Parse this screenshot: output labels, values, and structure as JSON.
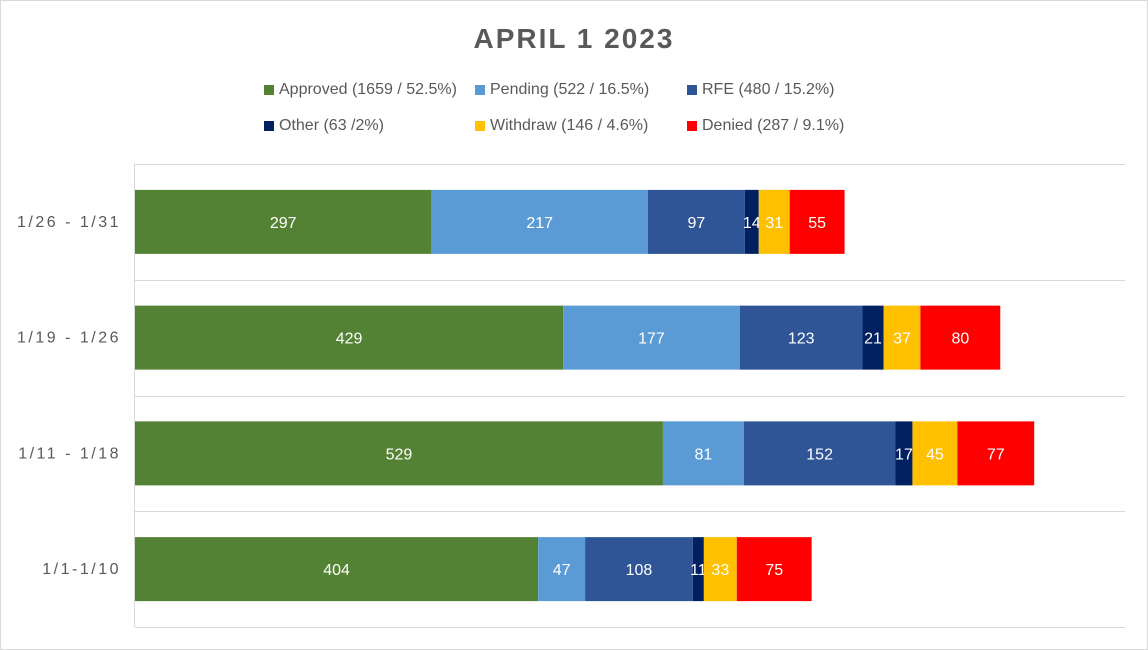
{
  "chart_data": {
    "type": "bar",
    "orientation": "horizontal",
    "stacked": true,
    "title": "APRIL 1 2023",
    "categories": [
      "1/26 - 1/31",
      "1/19 - 1/26",
      "1/11 - 1/18",
      "1/1-1/10"
    ],
    "series": [
      {
        "name": "Approved",
        "legend": "Approved (1659 / 52.5%)",
        "color": "#548235",
        "values": [
          297,
          429,
          529,
          404
        ]
      },
      {
        "name": "Pending",
        "legend": "Pending (522 / 16.5%)",
        "color": "#5b9bd5",
        "values": [
          217,
          177,
          81,
          47
        ]
      },
      {
        "name": "RFE",
        "legend": "RFE (480 / 15.2%)",
        "color": "#2f5597",
        "values": [
          97,
          123,
          152,
          108
        ]
      },
      {
        "name": "Other",
        "legend": "Other (63 /2%)",
        "color": "#002060",
        "values": [
          14,
          21,
          17,
          11
        ]
      },
      {
        "name": "Withdraw",
        "legend": "Withdraw (146 / 4.6%)",
        "color": "#ffc000",
        "values": [
          31,
          37,
          45,
          33
        ]
      },
      {
        "name": "Denied",
        "legend": "Denied (287 / 9.1%)",
        "color": "#ff0000",
        "values": [
          55,
          80,
          77,
          75
        ]
      }
    ],
    "xlim": [
      0,
      1000
    ],
    "grid": "horizontal-category-separators",
    "legend_position": "top",
    "data_labels": true
  }
}
